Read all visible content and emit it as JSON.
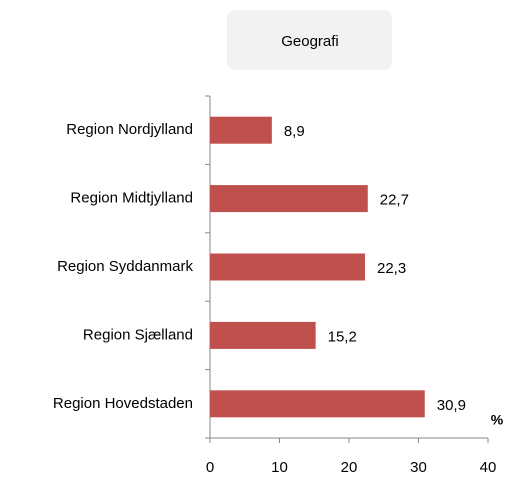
{
  "chart_data": {
    "type": "hbar",
    "title": "Geografi",
    "categories": [
      "Region Nordjylland",
      "Region Midtjylland",
      "Region Syddanmark",
      "Region Sjælland",
      "Region Hovedstaden"
    ],
    "values": [
      8.9,
      22.7,
      22.3,
      15.2,
      30.9
    ],
    "value_labels": [
      "8,9",
      "22,7",
      "22,3",
      "15,2",
      "30,9"
    ],
    "color": "#c0504d",
    "xlim": [
      0,
      40
    ],
    "xticks": [
      0,
      10,
      20,
      30,
      40
    ],
    "x_label": "%"
  }
}
